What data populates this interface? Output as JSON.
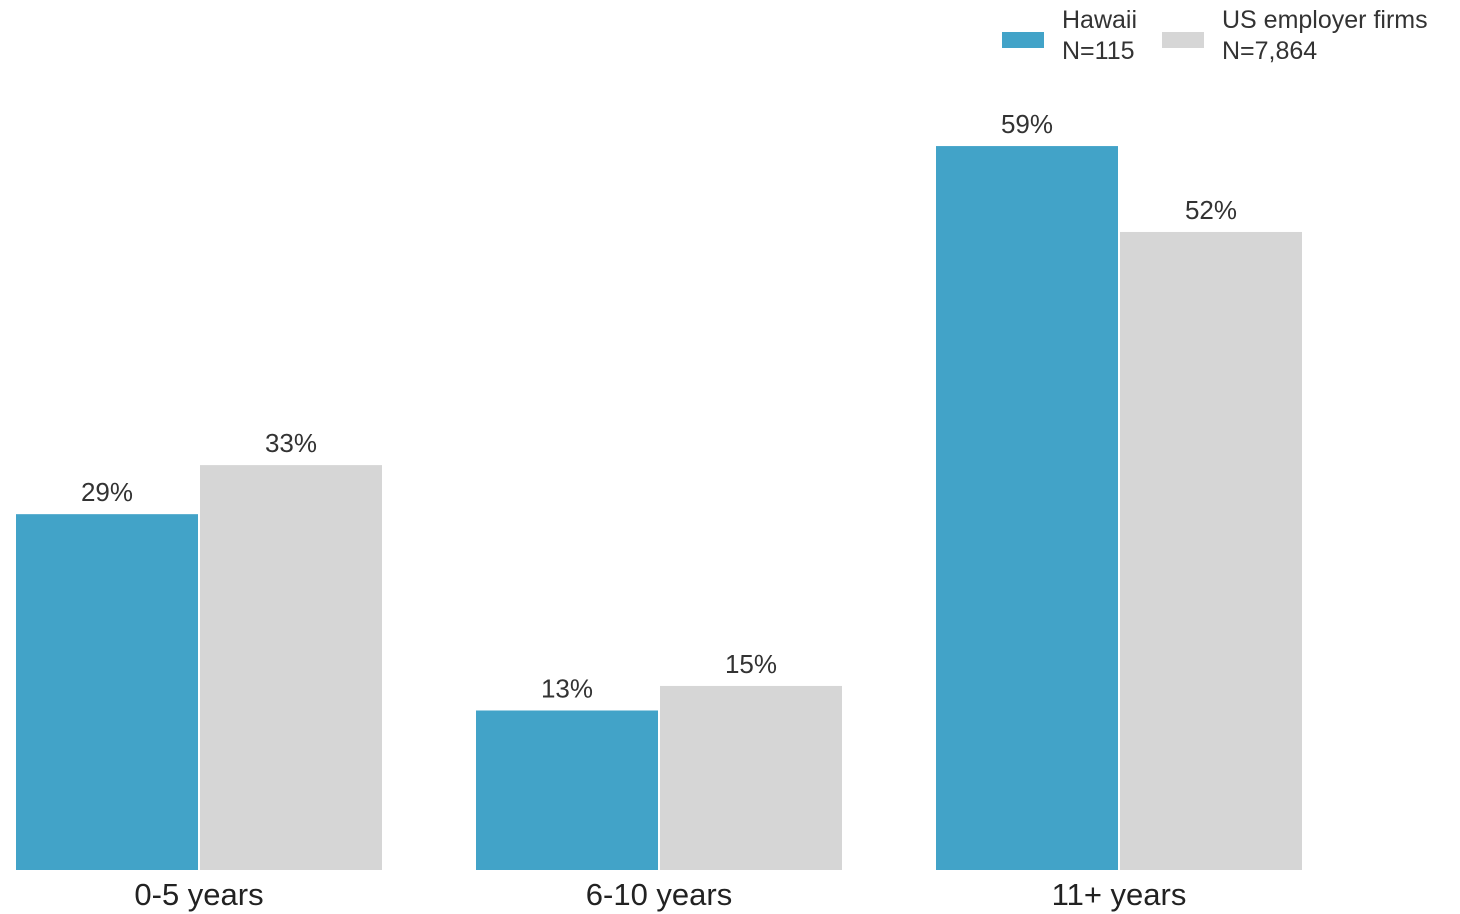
{
  "chart_data": {
    "type": "bar",
    "categories": [
      "0-5 years",
      "6-10 years",
      "11+ years"
    ],
    "series": [
      {
        "name": "Hawaii",
        "sample": "N=115",
        "color": "#42a3c8",
        "values": [
          29,
          13,
          59
        ],
        "labels": [
          "29%",
          "13%",
          "59%"
        ]
      },
      {
        "name": "US employer firms",
        "sample": "N=7,864",
        "color": "#d6d6d6",
        "values": [
          33,
          15,
          52
        ],
        "labels": [
          "33%",
          "15%",
          "52%"
        ]
      }
    ],
    "title": "",
    "xlabel": "",
    "ylabel": "",
    "ylim": [
      0,
      60
    ],
    "grid": false,
    "legend_position": "top-right",
    "y_axis_visible": false
  }
}
